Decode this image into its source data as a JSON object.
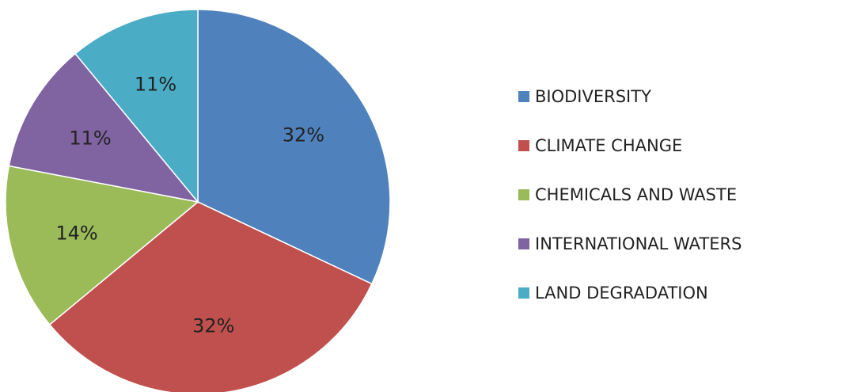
{
  "chart_data": {
    "type": "pie",
    "title": "",
    "categories": [
      "BIODIVERSITY",
      "CLIMATE CHANGE",
      "CHEMICALS AND WASTE",
      "INTERNATIONAL WATERS",
      "LAND DEGRADATION"
    ],
    "values": [
      32,
      32,
      14,
      11,
      11
    ],
    "labels": [
      "32%",
      "32%",
      "14%",
      "11%",
      "11%"
    ],
    "colors": [
      "#4f81bd",
      "#c0504d",
      "#9bbb59",
      "#8064a2",
      "#4bacc6"
    ],
    "legend": "right",
    "start_angle": "12 o'clock",
    "direction": "clockwise"
  }
}
